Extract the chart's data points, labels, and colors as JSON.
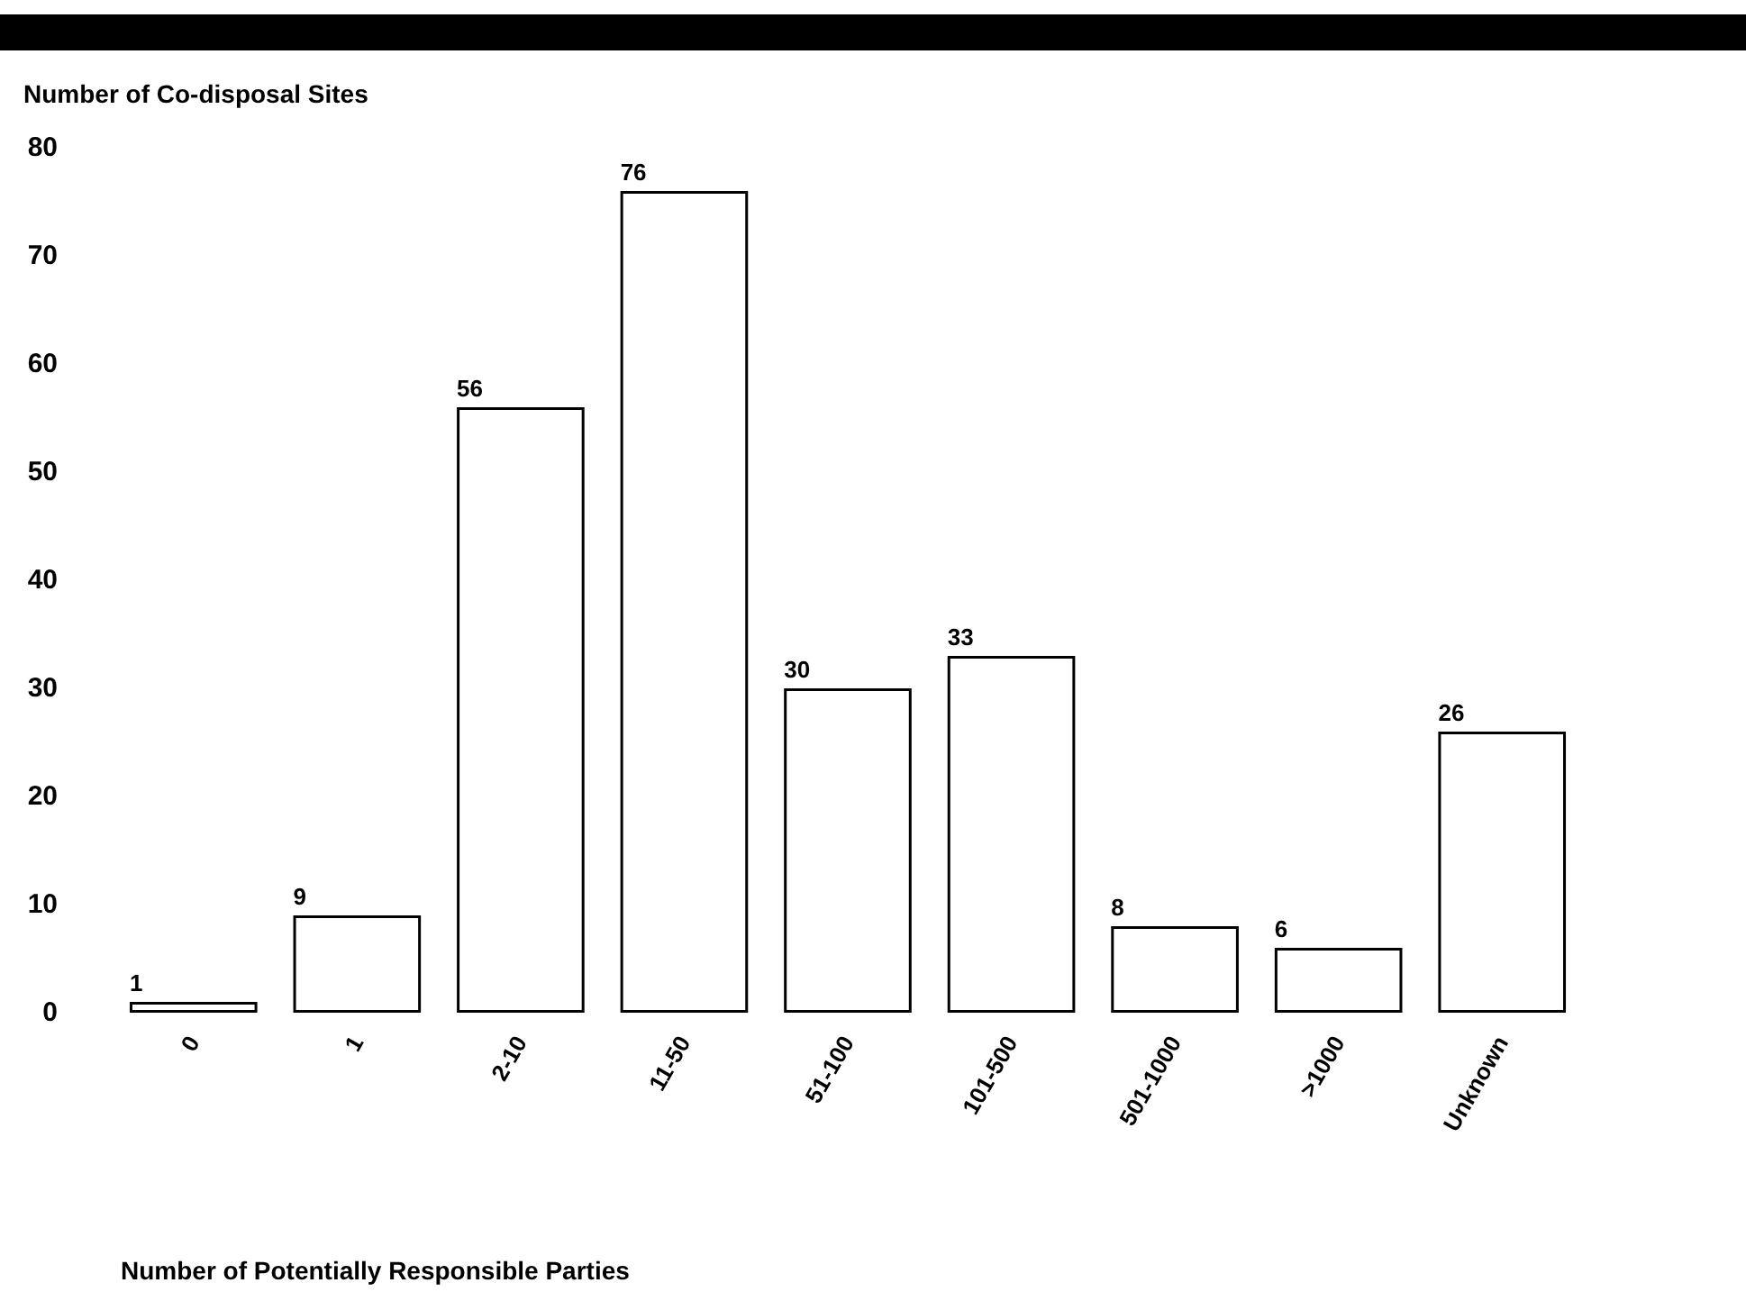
{
  "chart_data": {
    "type": "bar",
    "ylabel": "Number of Co-disposal Sites",
    "xlabel": "Number of Potentially Responsible Parties",
    "categories": [
      "0",
      "1",
      "2-10",
      "11-50",
      "51-100",
      "101-500",
      "501-1000",
      ">1000",
      "Unknown"
    ],
    "values": [
      1,
      9,
      56,
      76,
      30,
      33,
      8,
      6,
      26
    ],
    "color": "#ffffff",
    "ylim": [
      0,
      80
    ],
    "yticks": [
      0,
      10,
      20,
      30,
      40,
      50,
      60,
      70,
      80
    ],
    "grid": false,
    "data_labels": true
  }
}
